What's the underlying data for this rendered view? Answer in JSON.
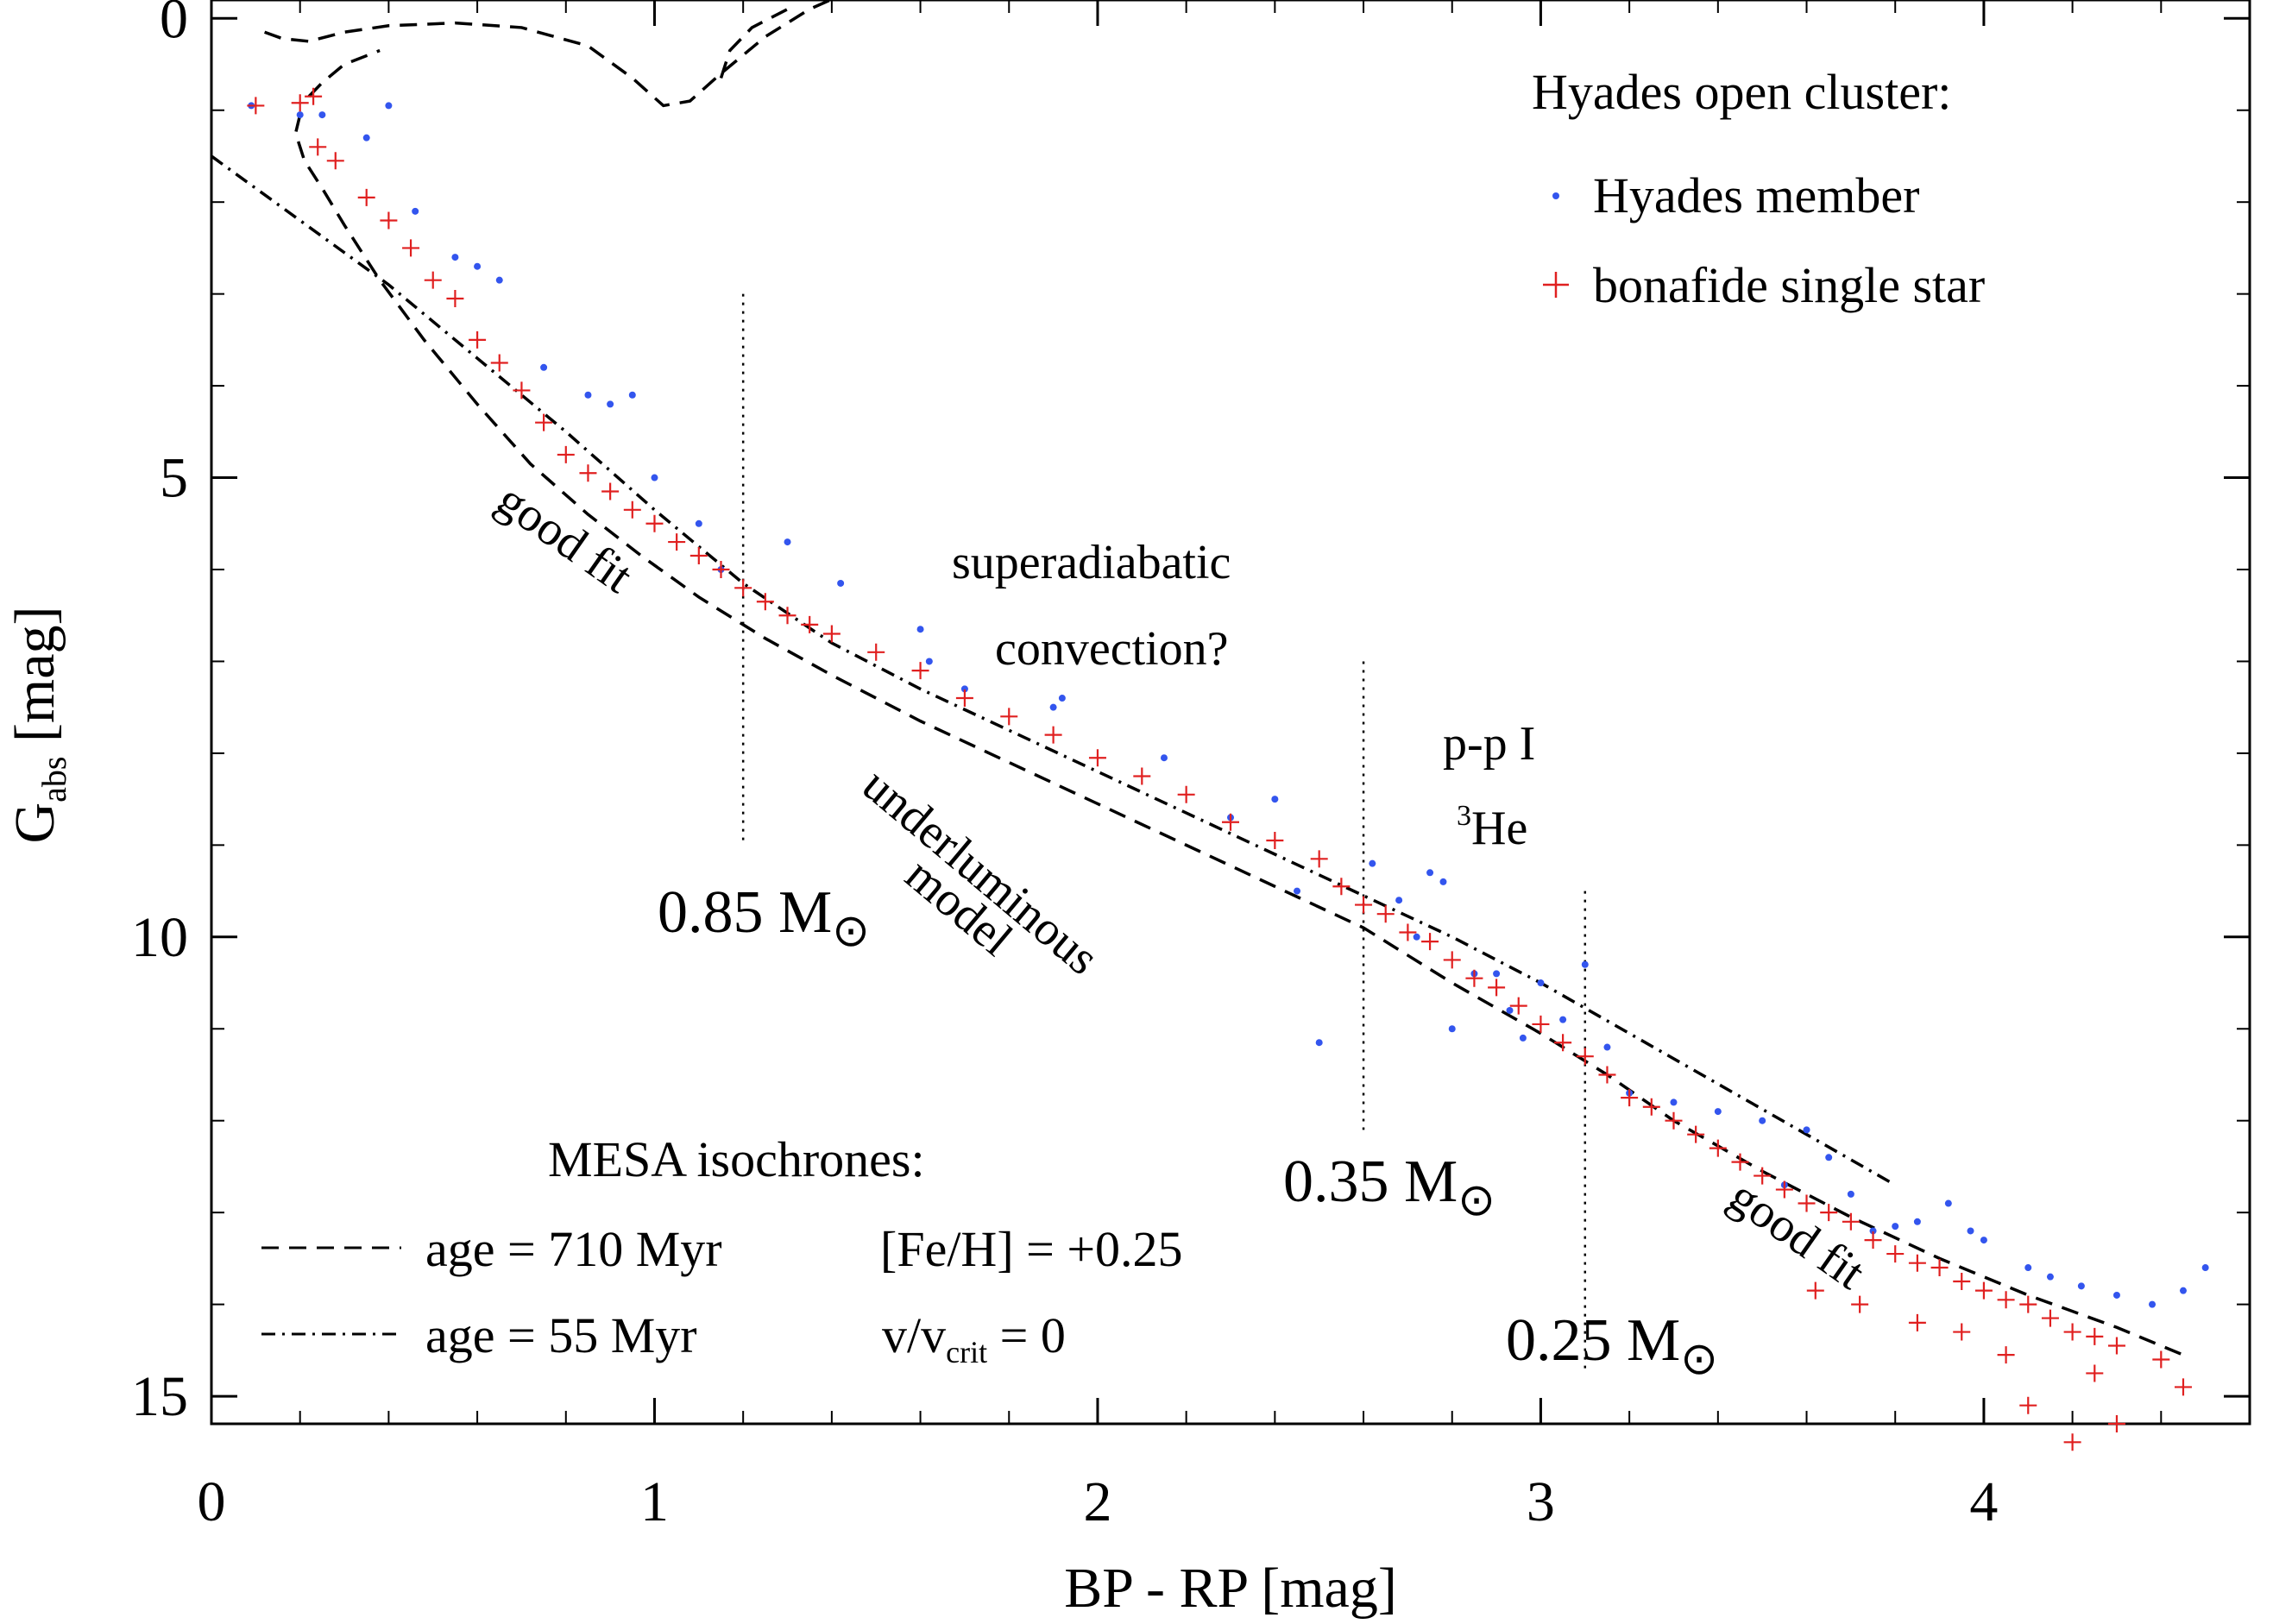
{
  "chart_data": {
    "type": "scatter",
    "xlabel": "BP - RP [mag]",
    "ylabel_main": "G",
    "ylabel_sub": "abs",
    "ylabel_unit": " [mag]",
    "xlim": [
      0,
      4.6
    ],
    "ylim": [
      15.3,
      -0.2
    ],
    "y_inverted": true,
    "grid": false,
    "x_ticks": [
      0,
      1,
      2,
      3,
      4
    ],
    "x_tick_labels": [
      "0",
      "1",
      "2",
      "3",
      "4"
    ],
    "y_ticks": [
      0,
      5,
      10,
      15
    ],
    "y_tick_labels": [
      "0",
      "5",
      "10",
      "15"
    ],
    "legend": {
      "position": "top-right",
      "title": "Hyades open cluster:",
      "entries": [
        {
          "label": "Hyades member",
          "marker": "dot",
          "color": "#3355ee"
        },
        {
          "label": "bonafide single star",
          "marker": "plus",
          "color": "#e02020"
        }
      ]
    },
    "isochrone_legend": {
      "position": "bottom-left",
      "title": "MESA isochrones:",
      "entries": [
        {
          "label": "age = 710 Myr",
          "style": "dashed",
          "param": "[Fe/H] = +0.25"
        },
        {
          "label": "age = 55 Myr",
          "style": "dashdot",
          "param_main": "v/v",
          "param_sub": "crit",
          "param_tail": " = 0"
        }
      ]
    },
    "annotations": {
      "good_fit_upper": "good fit",
      "superadiabatic_1": "superadiabatic",
      "superadiabatic_2": "convection?",
      "underluminous_1": "underluminous",
      "underluminous_2": "model",
      "pp_chain": "p-p I",
      "he3_sup": "3",
      "he3": "He",
      "good_fit_lower": "good fit",
      "mass_085": "0.85 M",
      "mass_035": "0.35 M",
      "mass_025": "0.25 M",
      "sun_symbol": "⊙"
    },
    "mass_markers": [
      {
        "x": 1.2,
        "y_range": [
          3.0,
          9.0
        ]
      },
      {
        "x": 2.6,
        "y_range": [
          7.0,
          12.1
        ]
      },
      {
        "x": 3.1,
        "y_range": [
          9.5,
          14.7
        ]
      }
    ],
    "series": [
      {
        "name": "isochrone age = 710 Myr (main sequence)",
        "style": "dashed",
        "x": [
          0.2,
          0.19,
          0.21,
          0.25,
          0.3,
          0.38,
          0.48,
          0.6,
          0.72,
          0.85,
          0.97,
          1.1,
          1.25,
          1.4,
          1.6,
          1.8,
          2.0,
          2.2,
          2.4,
          2.6,
          2.8,
          3.0,
          3.15,
          3.3,
          3.5,
          3.7,
          3.9,
          4.1,
          4.3,
          4.45
        ],
        "y": [
          1.05,
          1.25,
          1.55,
          1.85,
          2.25,
          2.85,
          3.5,
          4.2,
          4.85,
          5.4,
          5.85,
          6.3,
          6.75,
          7.15,
          7.65,
          8.1,
          8.55,
          9.0,
          9.45,
          9.9,
          10.5,
          11.05,
          11.5,
          12.0,
          12.55,
          13.05,
          13.5,
          13.9,
          14.25,
          14.55
        ]
      },
      {
        "name": "isochrone age = 710 Myr (turn-off and giant branch)",
        "style": "dashed",
        "x": [
          0.12,
          0.16,
          0.22,
          0.3,
          0.4,
          0.55,
          0.7,
          0.85,
          0.95,
          1.02,
          1.08,
          1.15,
          1.25,
          1.35,
          1.42,
          0.22,
          0.25,
          0.3,
          0.38,
          1.15,
          1.17,
          1.22,
          1.3
        ],
        "y": [
          0.15,
          0.22,
          0.25,
          0.15,
          0.08,
          0.05,
          0.1,
          0.3,
          0.65,
          0.95,
          0.9,
          0.6,
          0.2,
          -0.1,
          -0.25,
          0.85,
          0.7,
          0.5,
          0.35,
          0.65,
          0.35,
          0.1,
          -0.1
        ]
      },
      {
        "name": "isochrone age = 55 Myr",
        "style": "dashdot",
        "x": [
          0.0,
          0.2,
          0.4,
          0.6,
          0.8,
          1.0,
          1.2,
          1.4,
          1.6,
          1.8,
          2.0,
          2.2,
          2.4,
          2.6,
          2.8,
          3.0,
          3.2,
          3.4,
          3.6,
          3.8
        ],
        "y": [
          1.5,
          2.2,
          2.9,
          3.7,
          4.5,
          5.35,
          6.15,
          6.8,
          7.3,
          7.75,
          8.2,
          8.65,
          9.1,
          9.55,
          10.0,
          10.5,
          11.05,
          11.6,
          12.15,
          12.7
        ]
      },
      {
        "name": "Hyades member",
        "style": "dot",
        "x": [
          0.09,
          0.2,
          0.25,
          0.35,
          0.4,
          0.46,
          0.55,
          0.6,
          0.65,
          0.75,
          0.85,
          0.9,
          0.95,
          1.0,
          1.1,
          1.15,
          1.3,
          1.42,
          1.6,
          1.62,
          1.7,
          1.9,
          1.92,
          2.15,
          2.3,
          2.4,
          2.45,
          2.5,
          2.62,
          2.68,
          2.72,
          2.75,
          2.78,
          2.8,
          2.85,
          2.9,
          2.93,
          2.96,
          3.0,
          3.05,
          3.1,
          3.15,
          3.2,
          3.3,
          3.4,
          3.5,
          3.55,
          3.6,
          3.65,
          3.7,
          3.75,
          3.8,
          3.85,
          3.92,
          3.97,
          4.0,
          4.1,
          4.15,
          4.22,
          4.3,
          4.38,
          4.45,
          4.5
        ],
        "y": [
          0.95,
          1.05,
          1.05,
          1.3,
          0.95,
          2.1,
          2.6,
          2.7,
          2.85,
          3.8,
          4.1,
          4.2,
          4.1,
          5.0,
          5.5,
          6.0,
          5.7,
          6.15,
          6.65,
          7.0,
          7.3,
          7.5,
          7.4,
          8.05,
          8.7,
          8.5,
          9.5,
          11.15,
          9.2,
          9.6,
          10.0,
          9.3,
          9.4,
          11.0,
          10.4,
          10.4,
          10.8,
          11.1,
          10.5,
          10.9,
          10.3,
          11.2,
          11.7,
          11.8,
          11.9,
          12.0,
          12.7,
          12.1,
          12.4,
          12.8,
          13.2,
          13.15,
          13.1,
          12.9,
          13.2,
          13.3,
          13.6,
          13.7,
          13.8,
          13.9,
          14.0,
          13.85,
          13.6
        ]
      },
      {
        "name": "bonafide single star",
        "style": "plus",
        "x": [
          0.1,
          0.2,
          0.23,
          0.24,
          0.28,
          0.35,
          0.4,
          0.45,
          0.5,
          0.55,
          0.6,
          0.65,
          0.7,
          0.75,
          0.8,
          0.85,
          0.9,
          0.95,
          1.0,
          1.05,
          1.1,
          1.15,
          1.2,
          1.25,
          1.3,
          1.35,
          1.4,
          1.5,
          1.6,
          1.7,
          1.8,
          1.9,
          2.0,
          2.1,
          2.2,
          2.3,
          2.4,
          2.5,
          2.55,
          2.6,
          2.65,
          2.7,
          2.75,
          2.8,
          2.85,
          2.9,
          2.95,
          3.0,
          3.05,
          3.1,
          3.15,
          3.2,
          3.25,
          3.3,
          3.35,
          3.4,
          3.45,
          3.5,
          3.55,
          3.6,
          3.65,
          3.7,
          3.75,
          3.8,
          3.85,
          3.9,
          3.95,
          4.0,
          4.05,
          4.1,
          4.15,
          4.2,
          4.25,
          4.3,
          4.4,
          3.62,
          3.72,
          3.85,
          3.95,
          4.05,
          4.25,
          4.45,
          4.1,
          4.3,
          4.2
        ],
        "y": [
          0.95,
          0.92,
          0.85,
          1.4,
          1.55,
          1.95,
          2.2,
          2.5,
          2.85,
          3.05,
          3.5,
          3.75,
          4.05,
          4.4,
          4.75,
          4.95,
          5.15,
          5.35,
          5.5,
          5.7,
          5.85,
          6.0,
          6.2,
          6.35,
          6.5,
          6.6,
          6.7,
          6.9,
          7.1,
          7.4,
          7.6,
          7.8,
          8.05,
          8.25,
          8.45,
          8.75,
          8.95,
          9.15,
          9.45,
          9.65,
          9.75,
          9.95,
          10.05,
          10.25,
          10.45,
          10.55,
          10.75,
          10.95,
          11.15,
          11.3,
          11.5,
          11.75,
          11.85,
          12.0,
          12.15,
          12.3,
          12.45,
          12.6,
          12.75,
          12.9,
          13.0,
          13.1,
          13.3,
          13.45,
          13.55,
          13.6,
          13.75,
          13.85,
          13.95,
          14.0,
          14.15,
          14.3,
          14.35,
          14.45,
          14.6,
          13.85,
          14.0,
          14.2,
          14.3,
          14.55,
          14.75,
          14.9,
          15.1,
          15.3,
          15.5
        ]
      }
    ]
  }
}
